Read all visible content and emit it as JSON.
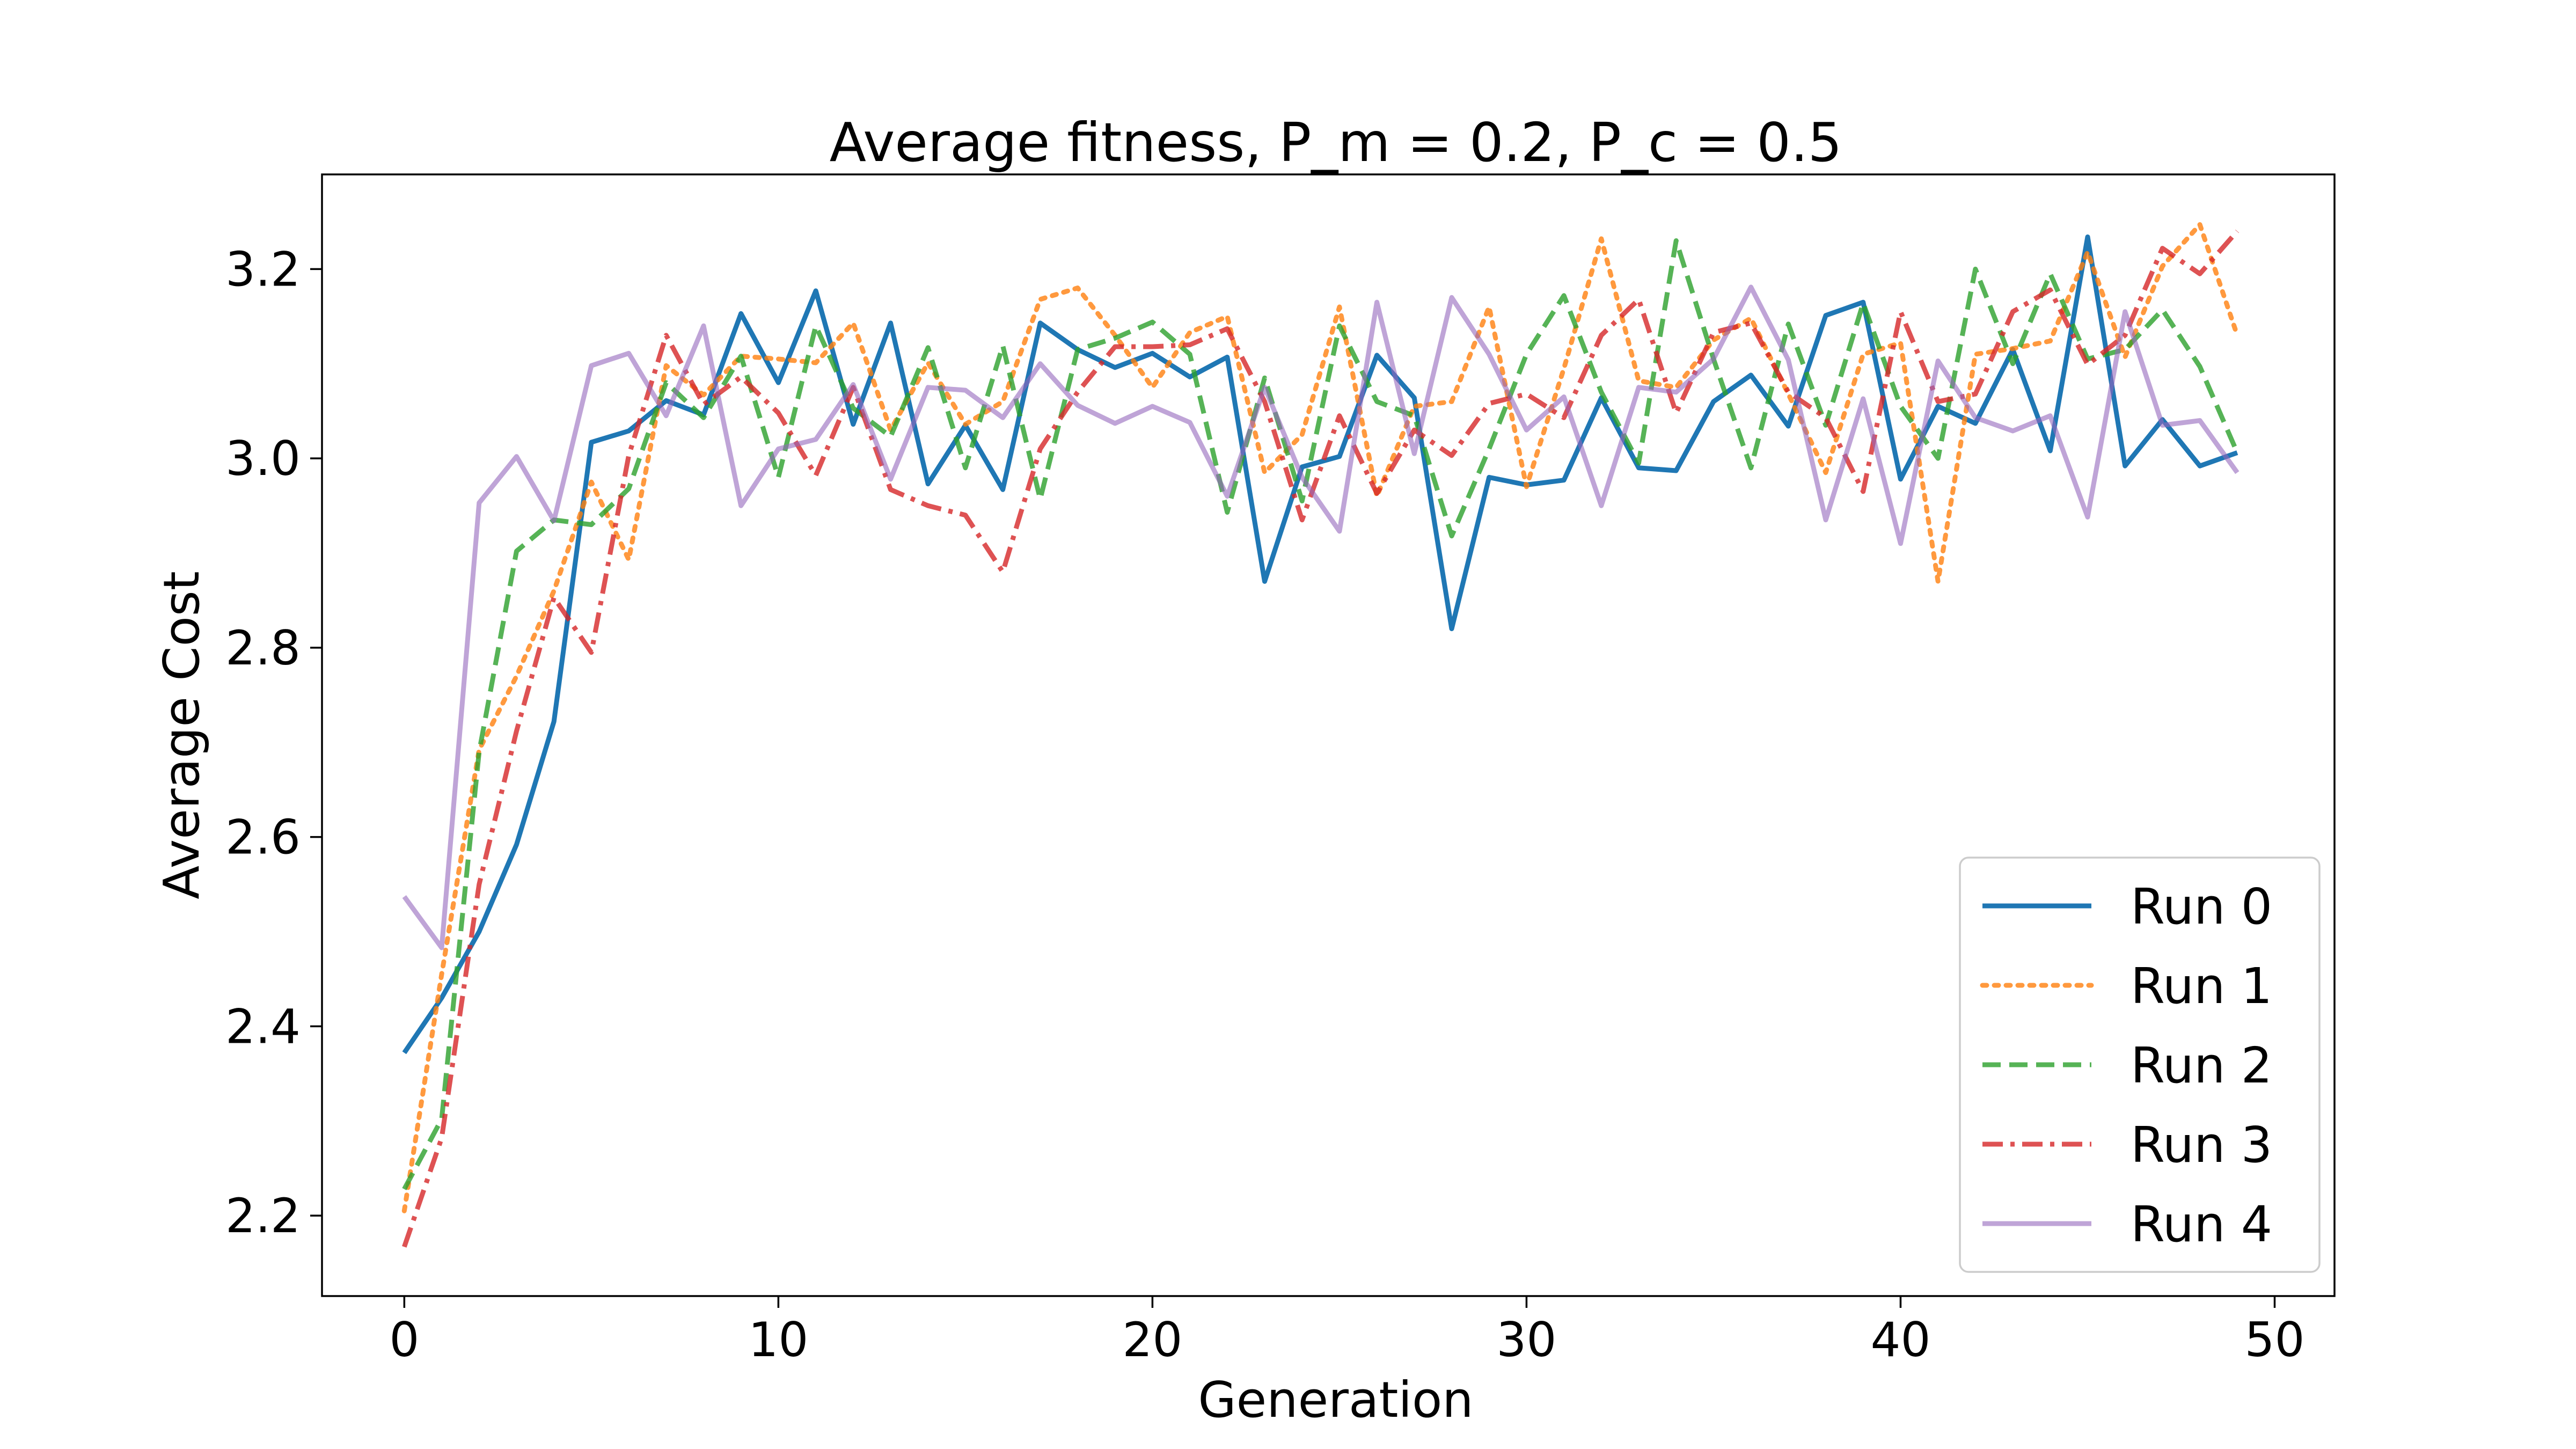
{
  "chart_data": {
    "type": "line",
    "title": "Average fitness, P_m = 0.2, P_c = 0.5",
    "xlabel": "Generation",
    "ylabel": "Average Cost",
    "xlim": [
      -2.2,
      51.6
    ],
    "ylim": [
      2.115,
      3.3
    ],
    "xticks": [
      0,
      10,
      20,
      30,
      40,
      50
    ],
    "yticks": [
      2.2,
      2.4,
      2.6,
      2.8,
      3.0,
      3.2
    ],
    "xtick_labels": [
      "0",
      "10",
      "20",
      "30",
      "40",
      "50"
    ],
    "ytick_labels": [
      "2.2",
      "2.4",
      "2.6",
      "2.8",
      "3.0",
      "3.2"
    ],
    "legend_position": "lower-right",
    "grid": false,
    "x": [
      0,
      1,
      2,
      3,
      4,
      5,
      6,
      7,
      8,
      9,
      10,
      11,
      12,
      13,
      14,
      15,
      16,
      17,
      18,
      19,
      20,
      21,
      22,
      23,
      24,
      25,
      26,
      27,
      28,
      29,
      30,
      31,
      32,
      33,
      34,
      35,
      36,
      37,
      38,
      39,
      40,
      41,
      42,
      43,
      44,
      45,
      46,
      47,
      48,
      49
    ],
    "series": [
      {
        "name": "Run 0",
        "color": "#1f77b4",
        "dash": "solid",
        "values": [
          2.372,
          2.43,
          2.5,
          2.592,
          2.722,
          3.017,
          3.029,
          3.061,
          3.046,
          3.153,
          3.08,
          3.177,
          3.036,
          3.143,
          2.973,
          3.035,
          2.967,
          3.143,
          3.115,
          3.096,
          3.111,
          3.086,
          3.107,
          2.87,
          2.991,
          3.002,
          3.109,
          3.064,
          2.82,
          2.98,
          2.972,
          2.977,
          3.064,
          2.99,
          2.987,
          3.06,
          3.088,
          3.034,
          3.151,
          3.165,
          2.978,
          3.055,
          3.037,
          3.115,
          3.008,
          3.234,
          2.992,
          3.041,
          2.992,
          3.006
        ]
      },
      {
        "name": "Run 1",
        "color": "#ff7f0e",
        "dash": "dotted",
        "values": [
          2.205,
          2.455,
          2.692,
          2.77,
          2.86,
          2.975,
          2.893,
          3.098,
          3.067,
          3.108,
          3.105,
          3.101,
          3.143,
          3.03,
          3.101,
          3.036,
          3.06,
          3.168,
          3.18,
          3.13,
          3.075,
          3.133,
          3.15,
          2.985,
          3.025,
          3.16,
          2.96,
          3.055,
          3.06,
          3.16,
          2.97,
          3.095,
          3.232,
          3.082,
          3.075,
          3.125,
          3.148,
          3.068,
          2.985,
          3.11,
          3.122,
          2.87,
          3.11,
          3.116,
          3.124,
          3.218,
          3.107,
          3.203,
          3.247,
          3.13
        ]
      },
      {
        "name": "Run 2",
        "color": "#2ca02c",
        "dash": "dashed",
        "values": [
          2.228,
          2.302,
          2.69,
          2.902,
          2.935,
          2.93,
          2.968,
          3.08,
          3.043,
          3.108,
          2.98,
          3.14,
          3.053,
          3.023,
          3.117,
          2.99,
          3.119,
          2.957,
          3.115,
          3.127,
          3.144,
          3.11,
          2.943,
          3.085,
          2.955,
          3.14,
          3.06,
          3.045,
          2.918,
          3.01,
          3.11,
          3.172,
          3.07,
          2.995,
          3.23,
          3.105,
          2.99,
          3.142,
          3.035,
          3.164,
          3.055,
          3.0,
          3.2,
          3.1,
          3.195,
          3.105,
          3.115,
          3.157,
          3.097,
          3.006
        ]
      },
      {
        "name": "Run 3",
        "color": "#d62728",
        "dash": "dashdot",
        "values": [
          2.167,
          2.282,
          2.55,
          2.712,
          2.853,
          2.795,
          3.003,
          3.13,
          3.057,
          3.086,
          3.048,
          2.982,
          3.075,
          2.967,
          2.95,
          2.94,
          2.88,
          3.01,
          3.07,
          3.118,
          3.118,
          3.12,
          3.137,
          3.06,
          2.935,
          3.045,
          2.963,
          3.03,
          3.003,
          3.058,
          3.068,
          3.043,
          3.13,
          3.168,
          3.048,
          3.133,
          3.143,
          3.07,
          3.043,
          2.965,
          3.155,
          3.06,
          3.068,
          3.155,
          3.178,
          3.099,
          3.13,
          3.222,
          3.195,
          3.24
        ]
      },
      {
        "name": "Run 4",
        "color": "#9467bd",
        "dash": "solid",
        "values": [
          2.537,
          2.483,
          2.953,
          3.002,
          2.934,
          3.098,
          3.111,
          3.045,
          3.14,
          2.95,
          3.01,
          3.02,
          3.078,
          2.978,
          3.075,
          3.072,
          3.043,
          3.1,
          3.056,
          3.037,
          3.055,
          3.038,
          2.96,
          3.075,
          2.98,
          2.923,
          3.165,
          3.005,
          3.17,
          3.11,
          3.03,
          3.065,
          2.95,
          3.075,
          3.07,
          3.105,
          3.181,
          3.104,
          2.935,
          3.063,
          2.91,
          3.103,
          3.043,
          3.029,
          3.045,
          2.938,
          3.155,
          3.035,
          3.04,
          2.985
        ]
      }
    ]
  }
}
